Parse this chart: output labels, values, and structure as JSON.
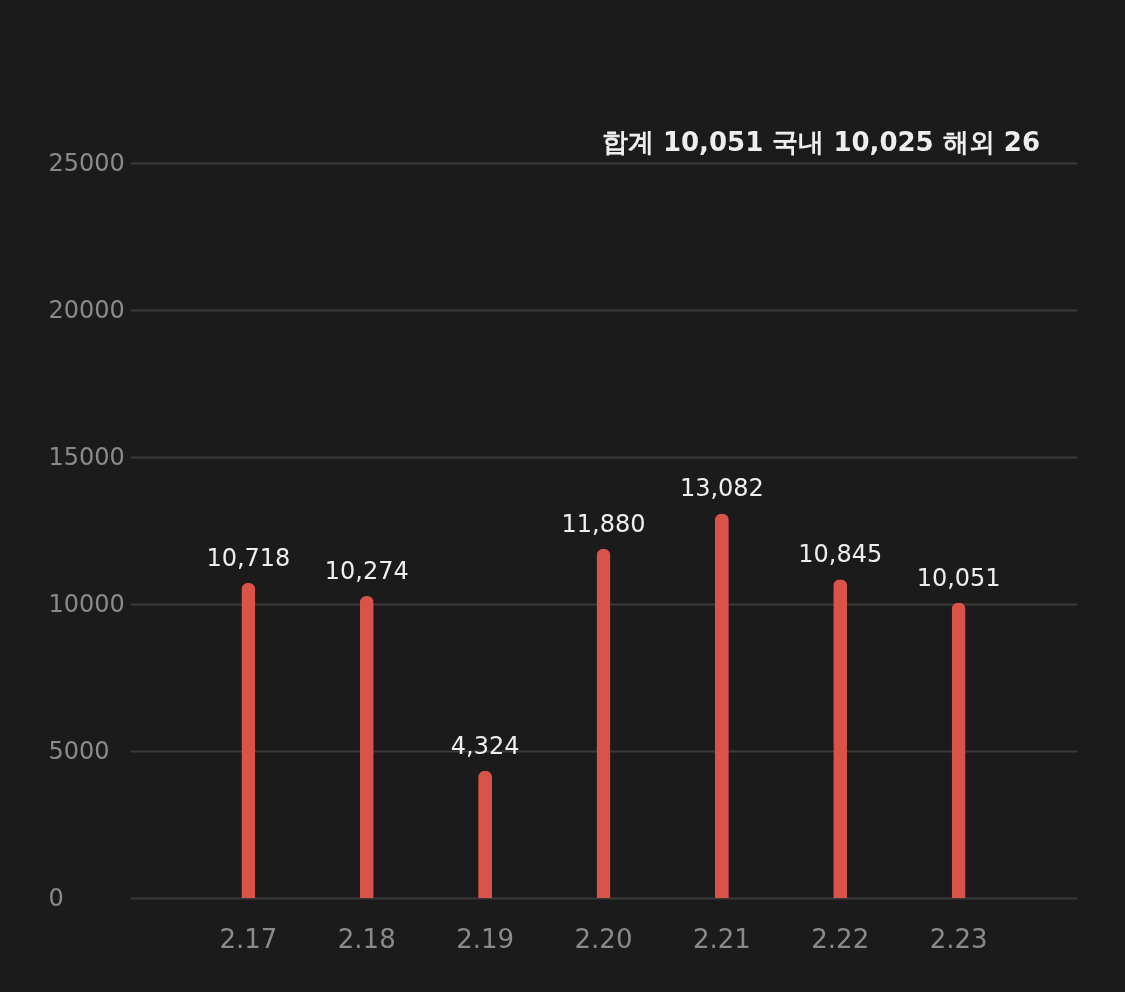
{
  "chart_data": {
    "type": "bar",
    "categories": [
      "2.17",
      "2.18",
      "2.19",
      "2.20",
      "2.21",
      "2.22",
      "2.23"
    ],
    "series": [
      {
        "color": "#d9534a",
        "values": [
          10718,
          10274,
          4324,
          11880,
          13082,
          10845,
          10051
        ]
      }
    ],
    "value_labels": [
      "10,718",
      "10,274",
      "4,324",
      "11,880",
      "13,082",
      "10,845",
      "10,051"
    ],
    "ylim": [
      0,
      25000
    ],
    "yticks": [
      0,
      5000,
      10000,
      15000,
      20000,
      25000
    ],
    "grid": "y",
    "annotations": [
      "합계 10,051 국내 10,025 해외 26"
    ]
  }
}
